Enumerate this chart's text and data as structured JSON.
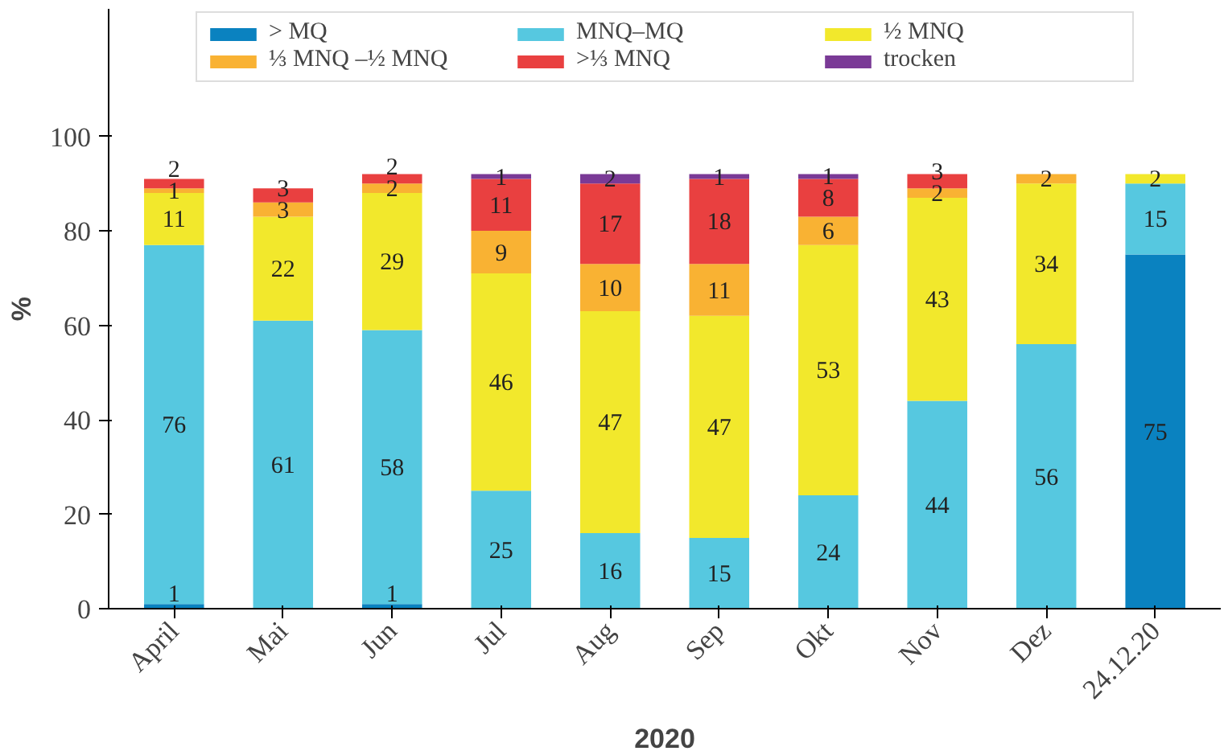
{
  "chart_data": {
    "type": "bar",
    "stacked": true,
    "xlabel": "2020",
    "ylabel": "%",
    "categories": [
      "April",
      "Mai",
      "Jun",
      "Jul",
      "Aug",
      "Sep",
      "Okt",
      "Nov",
      "Dez",
      "24.12.20"
    ],
    "ylim": [
      0,
      127
    ],
    "yticks": [
      0,
      20,
      40,
      60,
      80,
      100
    ],
    "grid": false,
    "legend": "top",
    "series": [
      {
        "name": "> MQ",
        "color": "#0a82c0",
        "values": [
          1,
          0,
          1,
          0,
          0,
          0,
          0,
          0,
          0,
          75
        ],
        "value_labels": [
          "1",
          null,
          "1",
          null,
          null,
          null,
          null,
          null,
          null,
          "75"
        ]
      },
      {
        "name": "MNQ–MQ",
        "color": "#56c8e0",
        "values": [
          76,
          61,
          58,
          25,
          16,
          15,
          24,
          44,
          56,
          15
        ],
        "value_labels": [
          "76",
          "61",
          "58",
          "25",
          "16",
          "15",
          "24",
          "44",
          "56",
          "15"
        ]
      },
      {
        "name": "½ MNQ",
        "color": "#f2e82c",
        "values": [
          11,
          22,
          29,
          46,
          47,
          47,
          53,
          43,
          34,
          2
        ],
        "value_labels": [
          "11",
          "22",
          "29",
          "46",
          "47",
          "47",
          "53",
          "43",
          "34",
          "2"
        ]
      },
      {
        "name": "⅓ MNQ –½ MNQ",
        "color": "#f9b233",
        "values": [
          1,
          3,
          2,
          9,
          10,
          11,
          6,
          2,
          2,
          0
        ],
        "value_labels": [
          "1",
          "3",
          "2",
          "9",
          "10",
          "11",
          "6",
          "2",
          "2",
          null
        ]
      },
      {
        "name": ">⅓ MNQ",
        "color": "#e94040",
        "values": [
          2,
          3,
          2,
          11,
          17,
          18,
          8,
          3,
          0,
          0
        ],
        "value_labels": [
          "2",
          "3",
          "2",
          "11",
          "17",
          "18",
          "8",
          "3",
          null,
          null
        ]
      },
      {
        "name": "trocken",
        "color": "#7a3a96",
        "values": [
          0,
          0,
          0,
          1,
          2,
          1,
          1,
          0,
          0,
          0
        ],
        "value_labels": [
          null,
          null,
          null,
          "1",
          "2",
          "1",
          "1",
          null,
          null,
          null
        ]
      }
    ]
  }
}
